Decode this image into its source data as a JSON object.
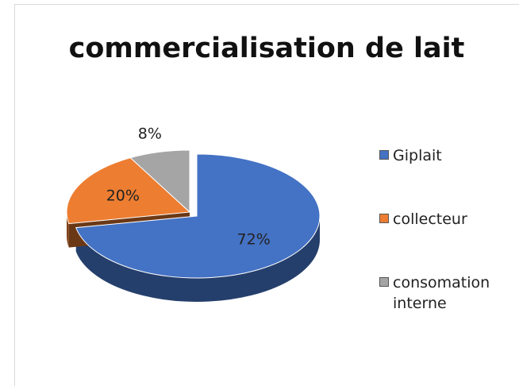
{
  "chart_data": {
    "type": "pie",
    "title": "commercialisation de lait",
    "categories": [
      "Giplait",
      "collecteur",
      "consomation interne"
    ],
    "values": [
      72,
      20,
      8
    ],
    "value_labels": [
      "72%",
      "20%",
      "8%"
    ],
    "colors": [
      "#4472c4",
      "#ed7d31",
      "#a5a5a5"
    ],
    "legend": "right"
  }
}
